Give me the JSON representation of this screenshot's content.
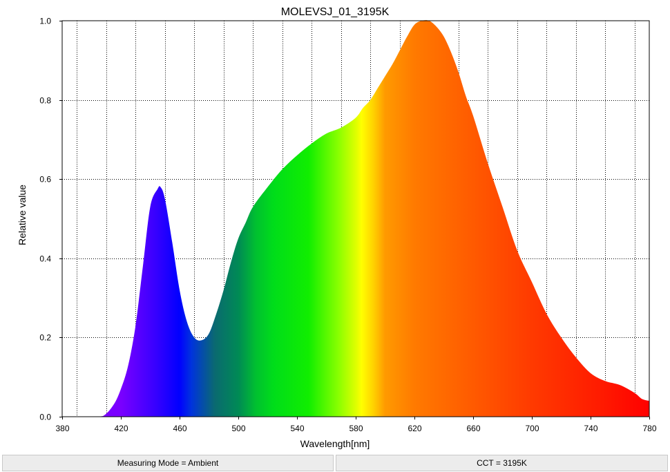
{
  "chart_data": {
    "type": "area",
    "title": "MOLEVSJ_01_3195K",
    "xlabel": "Wavelength[nm]",
    "ylabel": "Relative value",
    "xlim": [
      380,
      780
    ],
    "ylim": [
      0,
      1.0
    ],
    "xticks": [
      380,
      420,
      460,
      500,
      540,
      580,
      620,
      660,
      700,
      740,
      780
    ],
    "yticks": [
      0.0,
      0.2,
      0.4,
      0.6,
      0.8,
      1.0
    ],
    "xtick_labels": [
      "380",
      "420",
      "460",
      "500",
      "540",
      "580",
      "620",
      "660",
      "700",
      "740",
      "780"
    ],
    "ytick_labels": [
      "0.0",
      "0.2",
      "0.4",
      "0.6",
      "0.8",
      "1.0"
    ],
    "grid": true,
    "fill": "visible-spectrum colors",
    "x": [
      380,
      400,
      408,
      415,
      420,
      425,
      430,
      435,
      440,
      445,
      447,
      450,
      455,
      460,
      465,
      470,
      475,
      480,
      485,
      490,
      495,
      500,
      505,
      510,
      520,
      530,
      540,
      550,
      560,
      570,
      580,
      585,
      590,
      595,
      600,
      605,
      610,
      615,
      620,
      625,
      630,
      635,
      640,
      645,
      650,
      655,
      660,
      670,
      680,
      690,
      700,
      710,
      720,
      730,
      740,
      750,
      760,
      770,
      775,
      780
    ],
    "values": [
      0.0,
      0.0,
      0.002,
      0.03,
      0.07,
      0.13,
      0.23,
      0.38,
      0.53,
      0.575,
      0.58,
      0.55,
      0.44,
      0.32,
      0.24,
      0.2,
      0.193,
      0.21,
      0.26,
      0.32,
      0.39,
      0.45,
      0.49,
      0.53,
      0.58,
      0.625,
      0.66,
      0.69,
      0.715,
      0.73,
      0.755,
      0.78,
      0.8,
      0.83,
      0.86,
      0.89,
      0.925,
      0.96,
      0.99,
      1.0,
      1.0,
      0.985,
      0.96,
      0.92,
      0.87,
      0.81,
      0.76,
      0.64,
      0.53,
      0.42,
      0.34,
      0.26,
      0.2,
      0.15,
      0.11,
      0.09,
      0.08,
      0.06,
      0.045,
      0.04
    ]
  },
  "footer": {
    "measuring_mode": "Measuring Mode = Ambient",
    "cct": "CCT = 3195K"
  }
}
